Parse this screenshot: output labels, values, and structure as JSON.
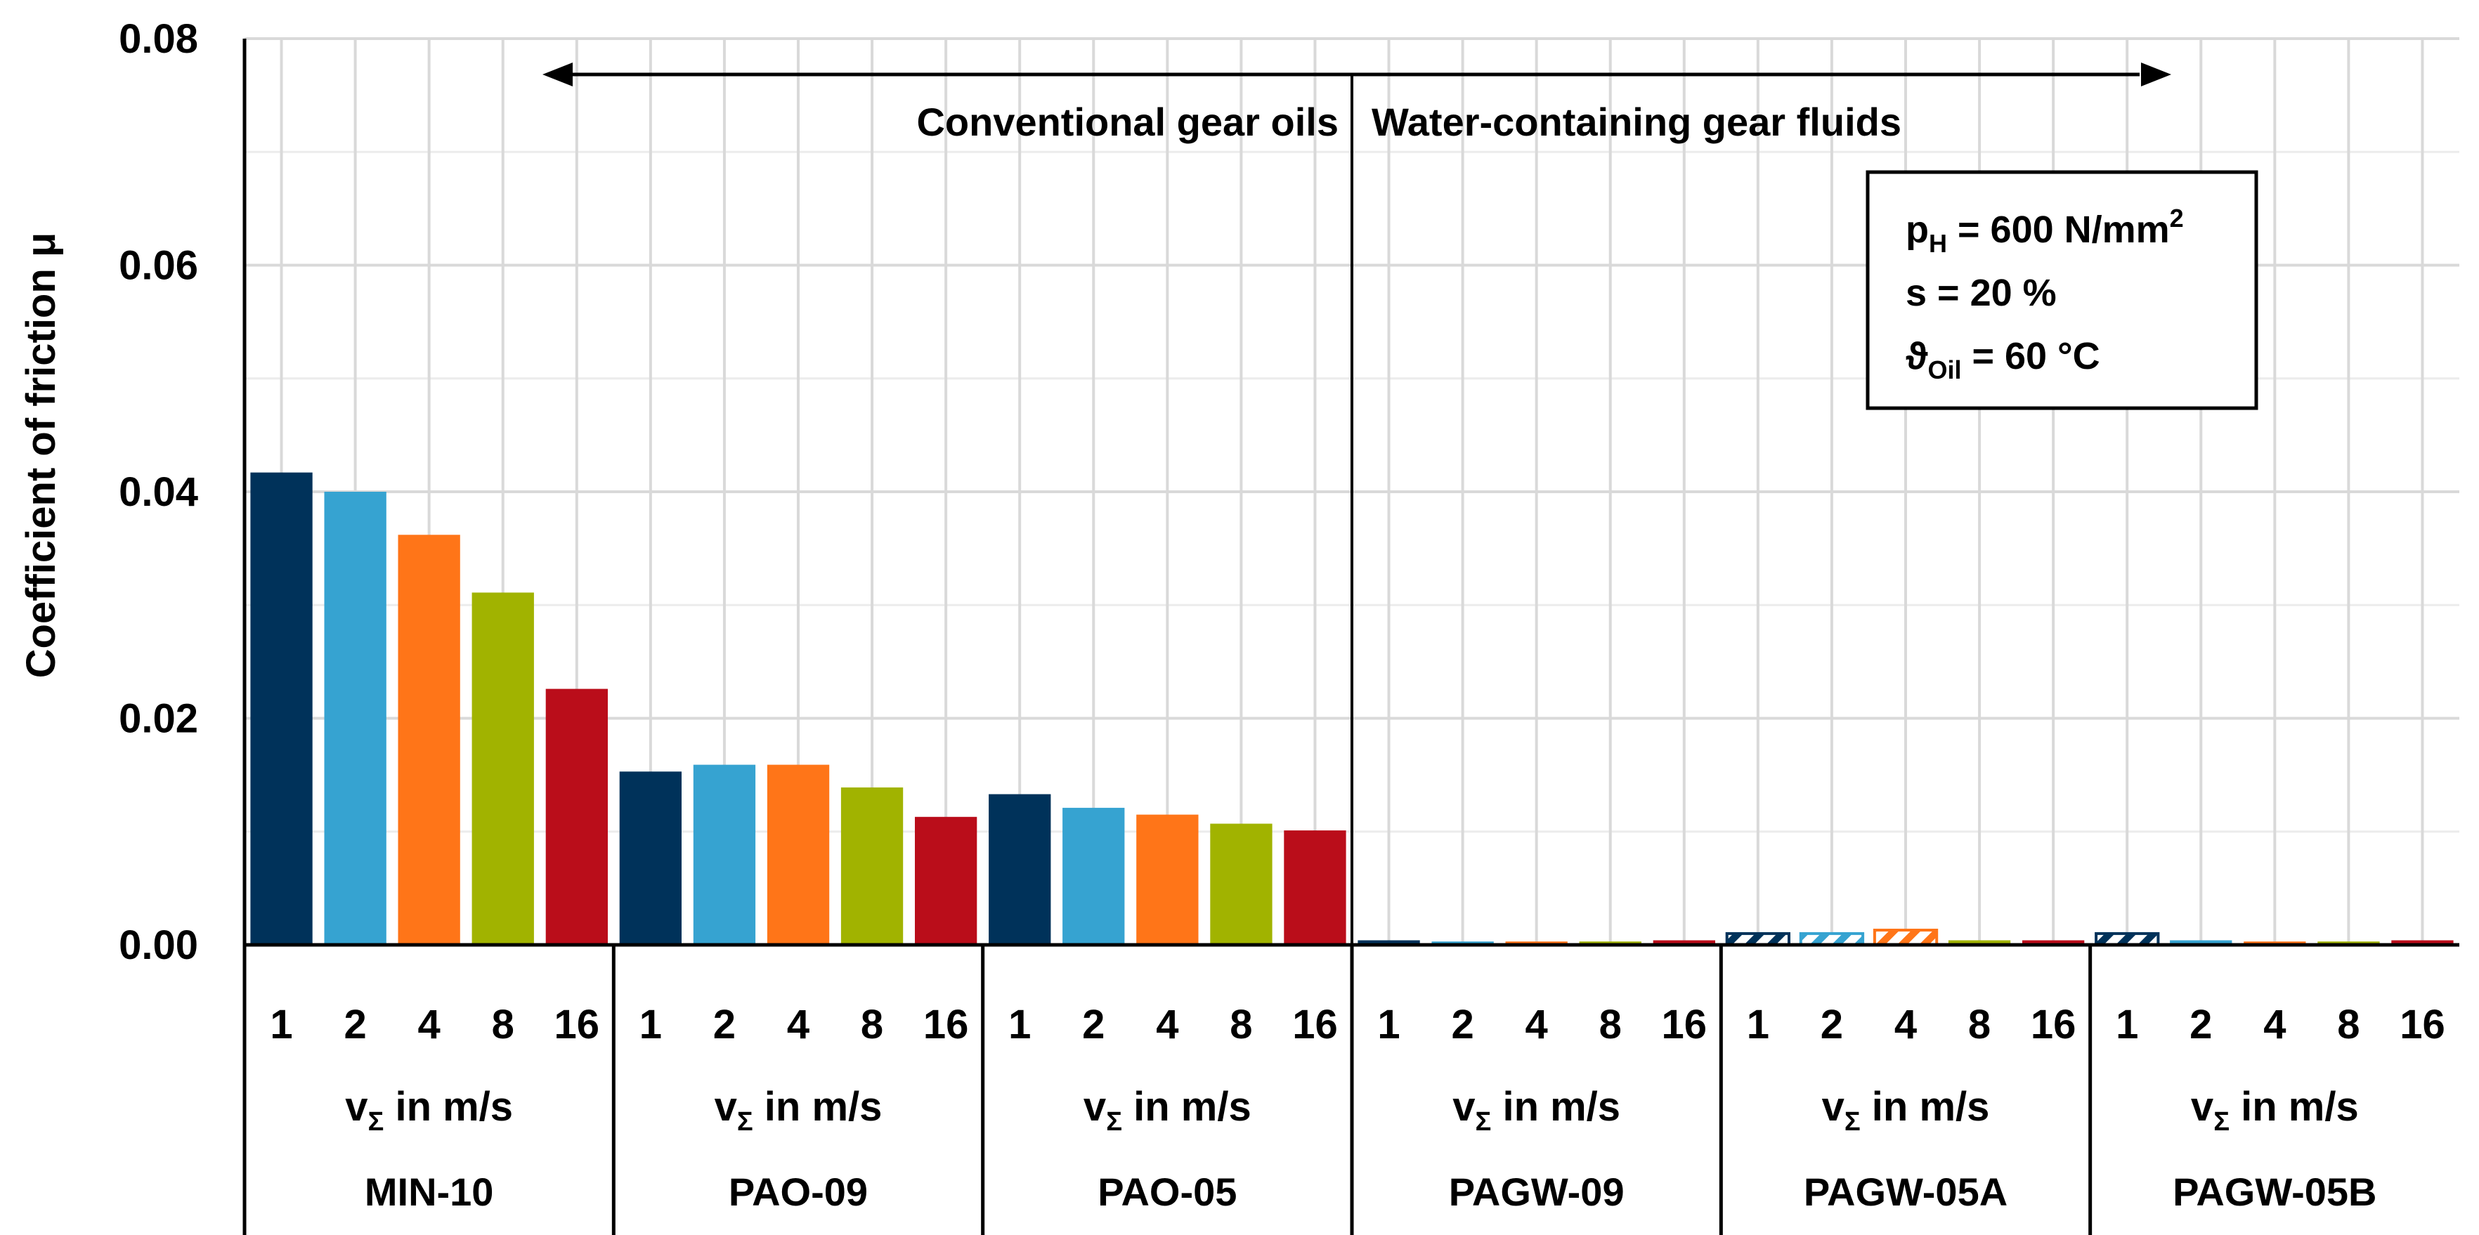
{
  "chart_data": {
    "type": "bar",
    "ylabel": "Coefficient of friction μ",
    "ylim": [
      0,
      0.08
    ],
    "yticks": [
      "0.00",
      "0.02",
      "0.04",
      "0.06",
      "0.08"
    ],
    "grid": true,
    "speeds": [
      "1",
      "2",
      "4",
      "8",
      "16"
    ],
    "speed_axis_label": "v",
    "speed_axis_label_sub": "Σ",
    "speed_axis_label_rest": " in m/s",
    "series_colors": [
      "#00325A",
      "#36A3D1",
      "#FF7518",
      "#A1B300",
      "#BA0D1A"
    ],
    "groups": [
      {
        "name": "MIN-10",
        "values": [
          0.0417,
          0.04,
          0.0362,
          0.0311,
          0.0226
        ],
        "hatched": [
          false,
          false,
          false,
          false,
          false
        ]
      },
      {
        "name": "PAO-09",
        "values": [
          0.0153,
          0.0159,
          0.0159,
          0.0139,
          0.0113
        ],
        "hatched": [
          false,
          false,
          false,
          false,
          false
        ]
      },
      {
        "name": "PAO-05",
        "values": [
          0.0133,
          0.0121,
          0.0115,
          0.0107,
          0.0101
        ],
        "hatched": [
          false,
          false,
          false,
          false,
          false
        ]
      },
      {
        "name": "PAGW-09",
        "values": [
          0.0004,
          0.0003,
          0.0003,
          0.0003,
          0.0004
        ],
        "hatched": [
          false,
          false,
          false,
          false,
          false
        ]
      },
      {
        "name": "PAGW-05A",
        "values": [
          0.001,
          0.001,
          0.0013,
          0.0004,
          0.0004
        ],
        "hatched": [
          true,
          true,
          true,
          false,
          false
        ]
      },
      {
        "name": "PAGW-05B",
        "values": [
          0.001,
          0.0004,
          0.0003,
          0.0003,
          0.0004
        ],
        "hatched": [
          true,
          false,
          false,
          false,
          false
        ]
      }
    ],
    "annotations": {
      "range_left": "Conventional gear oils",
      "range_right": "Water-containing gear fluids"
    },
    "conditions": {
      "p_main": "p",
      "p_sub": "H",
      "p_rest": " = 600 N/mm",
      "p_sup": "2",
      "s_line": "s = 20 %",
      "t_main": "ϑ",
      "t_sub": "Oil",
      "t_rest": " = 60 °C"
    }
  }
}
